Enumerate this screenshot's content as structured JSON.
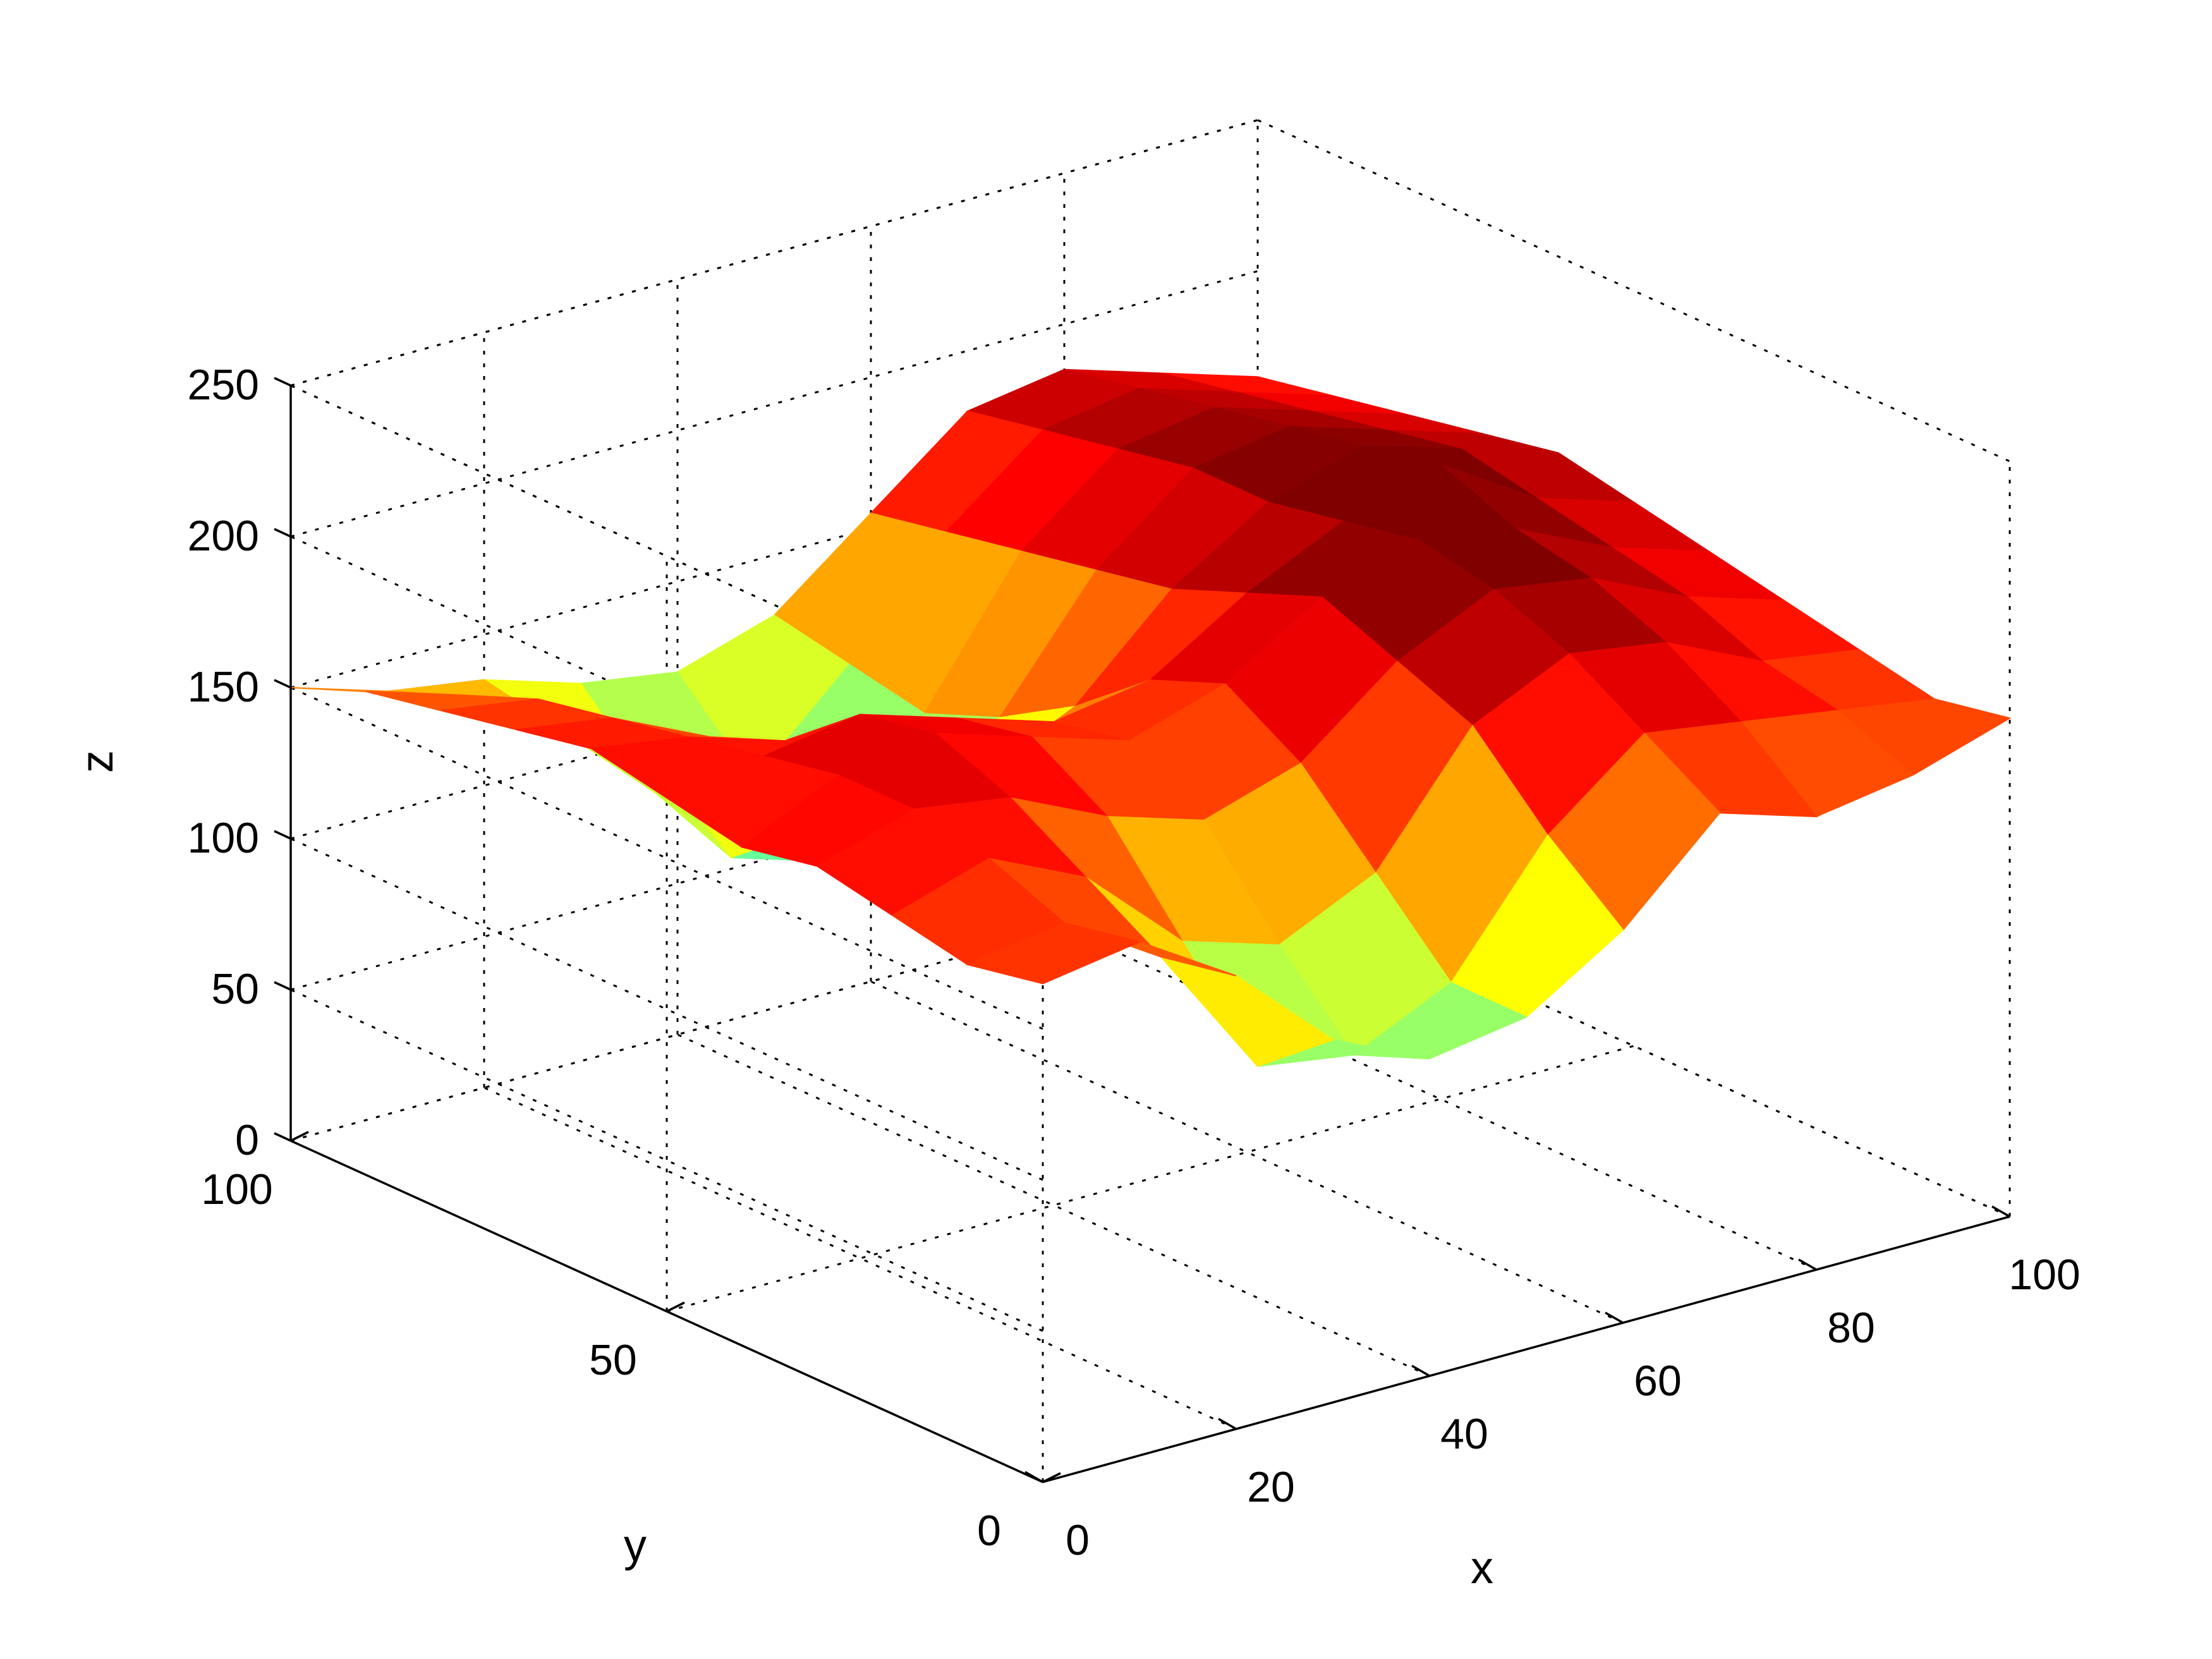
{
  "chart_data": {
    "type": "surface",
    "title": "",
    "xlabel": "x",
    "ylabel": "y",
    "zlabel": "z",
    "xlim": [
      0,
      100
    ],
    "ylim": [
      0,
      100
    ],
    "zlim": [
      0,
      250
    ],
    "x_ticks": [
      0,
      20,
      40,
      60,
      80,
      100
    ],
    "y_ticks": [
      0,
      50,
      100
    ],
    "z_ticks": [
      0,
      50,
      100,
      150,
      200,
      250
    ],
    "colormap": "jet",
    "color_range": [
      0,
      200
    ],
    "grid": true,
    "box": true,
    "view": "3d-oblique",
    "grid_x": [
      0,
      10,
      20,
      30,
      40,
      50,
      60,
      70,
      80,
      90,
      100
    ],
    "grid_y": [
      0,
      10,
      20,
      30,
      40,
      50,
      60,
      70,
      80,
      90,
      100
    ],
    "z_rows": [
      [
        165,
        170,
        150,
        120,
        105,
        110,
        130,
        160,
        150,
        155,
        165
      ],
      [
        160,
        165,
        145,
        100,
        95,
        110,
        150,
        175,
        170,
        165,
        160
      ],
      [
        165,
        175,
        160,
        130,
        120,
        135,
        175,
        190,
        185,
        170,
        165
      ],
      [
        170,
        180,
        175,
        160,
        150,
        160,
        185,
        200,
        195,
        180,
        170
      ],
      [
        165,
        180,
        185,
        175,
        165,
        175,
        195,
        205,
        200,
        185,
        175
      ],
      [
        170,
        175,
        180,
        170,
        160,
        165,
        185,
        200,
        210,
        190,
        180
      ],
      [
        175,
        170,
        160,
        140,
        130,
        145,
        175,
        195,
        205,
        195,
        185
      ],
      [
        170,
        165,
        150,
        110,
        100,
        130,
        170,
        195,
        200,
        190,
        180
      ],
      [
        165,
        160,
        140,
        90,
        80,
        120,
        165,
        190,
        195,
        185,
        175
      ],
      [
        160,
        150,
        130,
        100,
        95,
        125,
        160,
        185,
        190,
        180,
        170
      ],
      [
        150,
        140,
        135,
        125,
        120,
        130,
        155,
        180,
        185,
        175,
        165
      ]
    ]
  }
}
